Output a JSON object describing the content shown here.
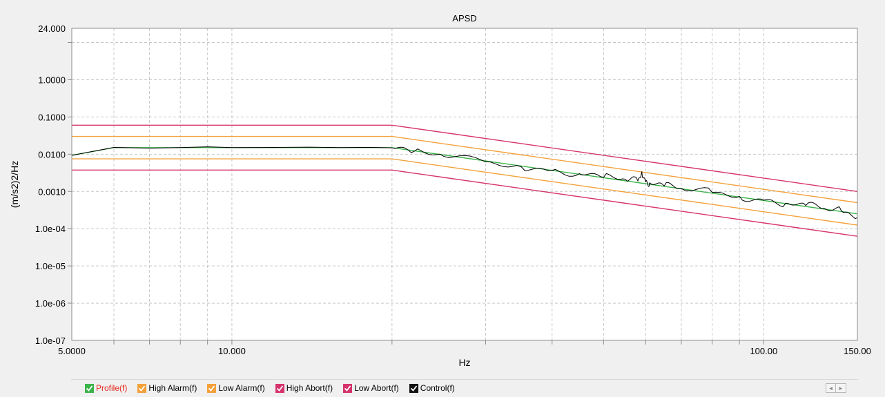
{
  "chart_data": {
    "type": "line",
    "title": "APSD",
    "xlabel": "Hz",
    "ylabel": "(m/s2)2/Hz",
    "x_scale": "log",
    "y_scale": "log",
    "xlim": [
      5.0,
      150.0
    ],
    "ylim": [
      1e-07,
      24.0
    ],
    "grid": true,
    "legend_position": "bottom",
    "x_tick_labels": [
      {
        "value": 5.0,
        "label": "5.0000"
      },
      {
        "value": 10.0,
        "label": "10.000"
      },
      {
        "value": 100.0,
        "label": "100.00"
      },
      {
        "value": 150.0,
        "label": "150.00"
      }
    ],
    "y_tick_labels": [
      {
        "value": 24.0,
        "label": "24.000"
      },
      {
        "value": 1.0,
        "label": "1.0000"
      },
      {
        "value": 0.1,
        "label": "0.1000"
      },
      {
        "value": 0.01,
        "label": "0.0100"
      },
      {
        "value": 0.001,
        "label": "0.0010"
      },
      {
        "value": 0.0001,
        "label": "1.0e-04"
      },
      {
        "value": 1e-05,
        "label": "1.0e-05"
      },
      {
        "value": 1e-06,
        "label": "1.0e-06"
      },
      {
        "value": 1e-07,
        "label": "1.0e-07"
      }
    ],
    "series": [
      {
        "name": "Profile(f)",
        "color": "#3cb44b",
        "x": [
          5.0,
          6.0,
          20.0,
          150.0
        ],
        "y": [
          0.0093,
          0.015,
          0.015,
          0.00025
        ]
      },
      {
        "name": "High Alarm(f)",
        "color": "#f4a13a",
        "x": [
          5.0,
          20.0,
          150.0
        ],
        "y": [
          0.03,
          0.03,
          0.0005
        ]
      },
      {
        "name": "Low Alarm(f)",
        "color": "#f4a13a",
        "x": [
          5.0,
          20.0,
          150.0
        ],
        "y": [
          0.0075,
          0.0075,
          0.000125
        ]
      },
      {
        "name": "High Abort(f)",
        "color": "#d6336c",
        "x": [
          5.0,
          20.0,
          150.0
        ],
        "y": [
          0.06,
          0.06,
          0.001
        ]
      },
      {
        "name": "Low Abort(f)",
        "color": "#d6336c",
        "x": [
          5.0,
          20.0,
          150.0
        ],
        "y": [
          0.00375,
          0.00375,
          6.25e-05
        ]
      },
      {
        "name": "Control(f)",
        "color": "#000000",
        "x": [
          5.0,
          5.5,
          6.0,
          7.0,
          8.0,
          9.0,
          10.0,
          12.0,
          14.0,
          16.0,
          18.0,
          20.0,
          22.0,
          25.0,
          30.0,
          35.0,
          40.0,
          45.0,
          50.0,
          55.0,
          58.0,
          59.0,
          60.0,
          61.0,
          65.0,
          70.0,
          80.0,
          90.0,
          100.0,
          110.0,
          120.0,
          130.0,
          140.0,
          150.0
        ],
        "y": [
          0.0093,
          0.012,
          0.0152,
          0.0145,
          0.015,
          0.0158,
          0.015,
          0.0152,
          0.0155,
          0.015,
          0.0153,
          0.0148,
          0.0118,
          0.0088,
          0.0062,
          0.0046,
          0.0037,
          0.003,
          0.0024,
          0.0021,
          0.0019,
          0.0034,
          0.0018,
          0.0017,
          0.0014,
          0.0012,
          0.00095,
          0.00074,
          0.00058,
          0.00048,
          0.00042,
          0.00035,
          0.0003,
          0.0002
        ]
      }
    ]
  },
  "legend": [
    {
      "label": "Profile(f)",
      "color": "#3cb44b",
      "text_color": "#e8281c"
    },
    {
      "label": "High Alarm(f)",
      "color": "#f4a13a",
      "text_color": "#000000"
    },
    {
      "label": "Low Alarm(f)",
      "color": "#f4a13a",
      "text_color": "#000000"
    },
    {
      "label": "High Abort(f)",
      "color": "#d6336c",
      "text_color": "#000000"
    },
    {
      "label": "Low Abort(f)",
      "color": "#d6336c",
      "text_color": "#000000"
    },
    {
      "label": "Control(f)",
      "color": "#111111",
      "text_color": "#000000"
    }
  ],
  "scroll": {
    "left_icon": "◄",
    "right_icon": "►"
  }
}
